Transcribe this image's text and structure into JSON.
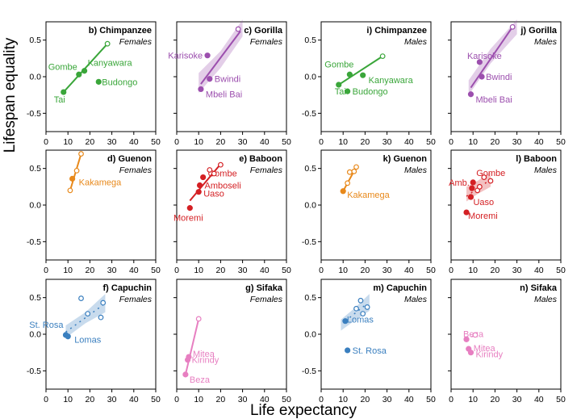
{
  "figure": {
    "xlabel": "Life expectancy",
    "ylabel": "Lifespan equality"
  },
  "chart_data": [
    {
      "id": "b",
      "type": "scatter",
      "title": "b) Chimpanzee",
      "sex": "Females",
      "color": "#3aa63a",
      "xlim": [
        0,
        50
      ],
      "ylim": [
        -0.75,
        0.75
      ],
      "points": [
        {
          "x": 8,
          "y": -0.21,
          "label": "Tai",
          "filled": true
        },
        {
          "x": 15,
          "y": 0.03,
          "label": "Gombe",
          "filled": true
        },
        {
          "x": 24,
          "y": -0.07,
          "label": "Budongo",
          "filled": true
        },
        {
          "x": 17.5,
          "y": 0.08,
          "label": "Kanyawara",
          "filled": true
        },
        {
          "x": 28,
          "y": 0.45,
          "label": "",
          "filled": false
        }
      ],
      "line": [
        [
          8,
          -0.21
        ],
        [
          28,
          0.45
        ]
      ],
      "band": null
    },
    {
      "id": "c",
      "type": "scatter",
      "title": "c) Gorilla",
      "sex": "Females",
      "color": "#9c4fae",
      "xlim": [
        0,
        50
      ],
      "ylim": [
        -0.75,
        0.75
      ],
      "points": [
        {
          "x": 14,
          "y": 0.29,
          "label": "Karisoke",
          "filled": true
        },
        {
          "x": 15,
          "y": -0.03,
          "label": "Bwindi",
          "filled": true
        },
        {
          "x": 11,
          "y": -0.17,
          "label": "Mbeli Bai",
          "filled": true
        },
        {
          "x": 28,
          "y": 0.65,
          "label": "",
          "filled": false
        }
      ],
      "line": [
        [
          11,
          -0.1
        ],
        [
          29,
          0.62
        ]
      ],
      "band": [
        [
          10,
          -0.22,
          0.05
        ],
        [
          20,
          0.12,
          0.35
        ],
        [
          30,
          0.55,
          0.78
        ]
      ]
    },
    {
      "id": "i",
      "type": "scatter",
      "title": "i) Chimpanzee",
      "sex": "Males",
      "color": "#3aa63a",
      "xlim": [
        0,
        50
      ],
      "ylim": [
        -0.75,
        0.75
      ],
      "points": [
        {
          "x": 8,
          "y": -0.11,
          "label": "Tai",
          "filled": true
        },
        {
          "x": 12,
          "y": -0.2,
          "label": "Budongo",
          "filled": true
        },
        {
          "x": 13,
          "y": 0.03,
          "label": "Gombe",
          "filled": true
        },
        {
          "x": 19,
          "y": 0.02,
          "label": "Kanyawara",
          "filled": true
        },
        {
          "x": 28,
          "y": 0.28,
          "label": "",
          "filled": false
        }
      ],
      "line": [
        [
          8,
          -0.11
        ],
        [
          28,
          0.28
        ]
      ],
      "band": null
    },
    {
      "id": "j",
      "type": "scatter",
      "title": "j) Gorilla",
      "sex": "Males",
      "color": "#9c4fae",
      "xlim": [
        0,
        50
      ],
      "ylim": [
        -0.75,
        0.75
      ],
      "points": [
        {
          "x": 13,
          "y": 0.2,
          "label": "Karisoke",
          "filled": true
        },
        {
          "x": 14,
          "y": 0.0,
          "label": "Bwindi",
          "filled": true
        },
        {
          "x": 9,
          "y": -0.24,
          "label": "Mbeli Bai",
          "filled": true
        },
        {
          "x": 28,
          "y": 0.68,
          "label": "",
          "filled": false
        }
      ],
      "line": [
        [
          9,
          -0.15
        ],
        [
          28,
          0.68
        ]
      ],
      "band": [
        [
          8,
          -0.25,
          -0.05
        ],
        [
          18,
          0.18,
          0.38
        ],
        [
          30,
          0.58,
          0.78
        ]
      ]
    },
    {
      "id": "d",
      "type": "scatter",
      "title": "d) Guenon",
      "sex": "Females",
      "color": "#e8891b",
      "xlim": [
        0,
        50
      ],
      "ylim": [
        -0.75,
        0.75
      ],
      "points": [
        {
          "x": 12,
          "y": 0.36,
          "label": "Kakamega",
          "filled": true
        },
        {
          "x": 11,
          "y": 0.2,
          "label": "",
          "filled": false
        },
        {
          "x": 14,
          "y": 0.47,
          "label": "",
          "filled": false
        },
        {
          "x": 16,
          "y": 0.7,
          "label": "",
          "filled": false
        }
      ],
      "line": [
        [
          11,
          0.2
        ],
        [
          16,
          0.7
        ]
      ],
      "band": null
    },
    {
      "id": "e",
      "type": "scatter",
      "title": "e) Baboon",
      "sex": "Females",
      "color": "#d42024",
      "xlim": [
        0,
        50
      ],
      "ylim": [
        -0.75,
        0.75
      ],
      "points": [
        {
          "x": 6,
          "y": -0.04,
          "label": "Moremi",
          "filled": true
        },
        {
          "x": 10,
          "y": 0.18,
          "label": "Uaso",
          "filled": true
        },
        {
          "x": 10.5,
          "y": 0.27,
          "label": "Amboseli",
          "filled": true
        },
        {
          "x": 12,
          "y": 0.38,
          "label": "Gombe",
          "filled": true
        },
        {
          "x": 15,
          "y": 0.48,
          "label": "",
          "filled": false
        },
        {
          "x": 17,
          "y": 0.43,
          "label": "",
          "filled": false
        },
        {
          "x": 20,
          "y": 0.55,
          "label": "",
          "filled": false
        }
      ],
      "line": [
        [
          6,
          0.06
        ],
        [
          20,
          0.56
        ]
      ],
      "band": null
    },
    {
      "id": "k",
      "type": "scatter",
      "title": "k) Guenon",
      "sex": "Males",
      "color": "#e8891b",
      "xlim": [
        0,
        50
      ],
      "ylim": [
        -0.75,
        0.75
      ],
      "points": [
        {
          "x": 10,
          "y": 0.19,
          "label": "Kakamega",
          "filled": true
        },
        {
          "x": 12,
          "y": 0.3,
          "label": "",
          "filled": false
        },
        {
          "x": 13,
          "y": 0.45,
          "label": "",
          "filled": false
        },
        {
          "x": 15,
          "y": 0.46,
          "label": "",
          "filled": false
        },
        {
          "x": 16,
          "y": 0.52,
          "label": "",
          "filled": false
        }
      ],
      "line": [
        [
          10,
          0.19
        ],
        [
          16,
          0.52
        ]
      ],
      "band": null
    },
    {
      "id": "l",
      "type": "scatter",
      "title": "l) Baboon",
      "sex": "Males",
      "color": "#d42024",
      "xlim": [
        0,
        50
      ],
      "ylim": [
        -0.75,
        0.75
      ],
      "points": [
        {
          "x": 7,
          "y": -0.1,
          "label": "Moremi",
          "filled": true
        },
        {
          "x": 9,
          "y": 0.11,
          "label": "Uaso",
          "filled": true
        },
        {
          "x": 9.5,
          "y": 0.23,
          "label": "Amb.",
          "filled": true
        },
        {
          "x": 10,
          "y": 0.31,
          "label": "Gombe",
          "filled": true
        },
        {
          "x": 12,
          "y": 0.2,
          "label": "",
          "filled": false
        },
        {
          "x": 13,
          "y": 0.25,
          "label": "",
          "filled": false
        },
        {
          "x": 15,
          "y": 0.38,
          "label": "",
          "filled": false
        },
        {
          "x": 18,
          "y": 0.33,
          "label": "",
          "filled": false
        }
      ],
      "line": [
        [
          7,
          0.12
        ],
        [
          18,
          0.35
        ]
      ],
      "band": [
        [
          7,
          0.05,
          0.25
        ],
        [
          12,
          0.15,
          0.33
        ],
        [
          18,
          0.25,
          0.45
        ]
      ],
      "dashed": true
    },
    {
      "id": "f",
      "type": "scatter",
      "title": "f) Capuchin",
      "sex": "Females",
      "color": "#3a7fbf",
      "xlim": [
        0,
        50
      ],
      "ylim": [
        -0.75,
        0.75
      ],
      "points": [
        {
          "x": 9,
          "y": -0.01,
          "label": "St. Rosa",
          "filled": true
        },
        {
          "x": 10,
          "y": -0.03,
          "label": "Lomas",
          "filled": true
        },
        {
          "x": 16,
          "y": 0.49,
          "label": "",
          "filled": false
        },
        {
          "x": 19,
          "y": 0.28,
          "label": "",
          "filled": false
        },
        {
          "x": 25,
          "y": 0.23,
          "label": "",
          "filled": false
        },
        {
          "x": 26,
          "y": 0.43,
          "label": "",
          "filled": false
        }
      ],
      "line": [
        [
          9,
          0.03
        ],
        [
          26,
          0.4
        ]
      ],
      "band": [
        [
          9,
          -0.05,
          0.12
        ],
        [
          18,
          0.15,
          0.3
        ],
        [
          27,
          0.3,
          0.55
        ]
      ],
      "dashed": true
    },
    {
      "id": "g",
      "type": "scatter",
      "title": "g) Sifaka",
      "sex": "Females",
      "color": "#e77fc1",
      "xlim": [
        0,
        50
      ],
      "ylim": [
        -0.75,
        0.75
      ],
      "points": [
        {
          "x": 4,
          "y": -0.55,
          "label": "Beza",
          "filled": true
        },
        {
          "x": 5,
          "y": -0.35,
          "label": "Kirindy",
          "filled": true
        },
        {
          "x": 5.5,
          "y": -0.31,
          "label": "Mitea",
          "filled": true
        },
        {
          "x": 10,
          "y": 0.21,
          "label": "",
          "filled": false
        }
      ],
      "line": [
        [
          4,
          -0.55
        ],
        [
          10,
          0.21
        ]
      ],
      "band": null
    },
    {
      "id": "m",
      "type": "scatter",
      "title": "m) Capuchin",
      "sex": "Males",
      "color": "#3a7fbf",
      "xlim": [
        0,
        50
      ],
      "ylim": [
        -0.75,
        0.75
      ],
      "points": [
        {
          "x": 11,
          "y": 0.18,
          "label": "Lomas",
          "filled": true
        },
        {
          "x": 12,
          "y": -0.22,
          "label": "St. Rosa",
          "filled": true
        },
        {
          "x": 16,
          "y": 0.35,
          "label": "",
          "filled": false
        },
        {
          "x": 18,
          "y": 0.46,
          "label": "",
          "filled": false
        },
        {
          "x": 19,
          "y": 0.28,
          "label": "",
          "filled": false
        },
        {
          "x": 21,
          "y": 0.37,
          "label": "",
          "filled": false
        }
      ],
      "line": [
        [
          11,
          0.18
        ],
        [
          21,
          0.42
        ]
      ],
      "band": [
        [
          9,
          0.05,
          0.2
        ],
        [
          15,
          0.18,
          0.35
        ],
        [
          22,
          0.32,
          0.55
        ]
      ],
      "dashed": true
    },
    {
      "id": "n",
      "type": "scatter",
      "title": "n) Sifaka",
      "sex": "Males",
      "color": "#e77fc1",
      "xlim": [
        0,
        50
      ],
      "ylim": [
        -0.75,
        0.75
      ],
      "points": [
        {
          "x": 7,
          "y": -0.07,
          "label": "Beza",
          "filled": true
        },
        {
          "x": 8,
          "y": -0.2,
          "label": "Mitea",
          "filled": true
        },
        {
          "x": 9,
          "y": -0.25,
          "label": "Kirindy",
          "filled": true
        },
        {
          "x": 11,
          "y": -0.01,
          "label": "",
          "filled": false
        }
      ],
      "line": [
        [
          7,
          -0.07
        ],
        [
          11,
          -0.01
        ]
      ],
      "band": null,
      "dashed": true
    }
  ]
}
